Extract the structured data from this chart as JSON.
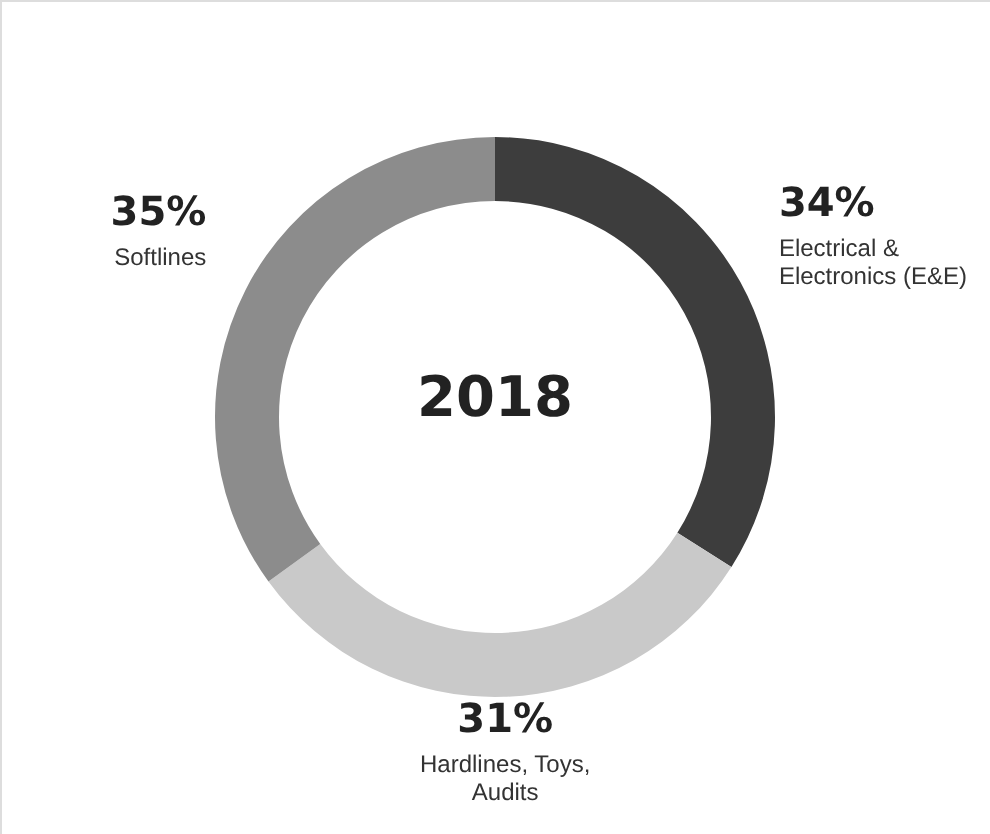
{
  "chart_data": {
    "type": "donut",
    "title": "2018",
    "categories": [
      "Electrical & Electronics (E&E)",
      "Hardlines, Toys, Audits",
      "Softlines"
    ],
    "values": [
      34,
      31,
      35
    ],
    "colors": [
      "#3d3d3d",
      "#c9c9c9",
      "#8c8c8c"
    ],
    "value_labels": [
      "34%",
      "31%",
      "35%"
    ]
  }
}
